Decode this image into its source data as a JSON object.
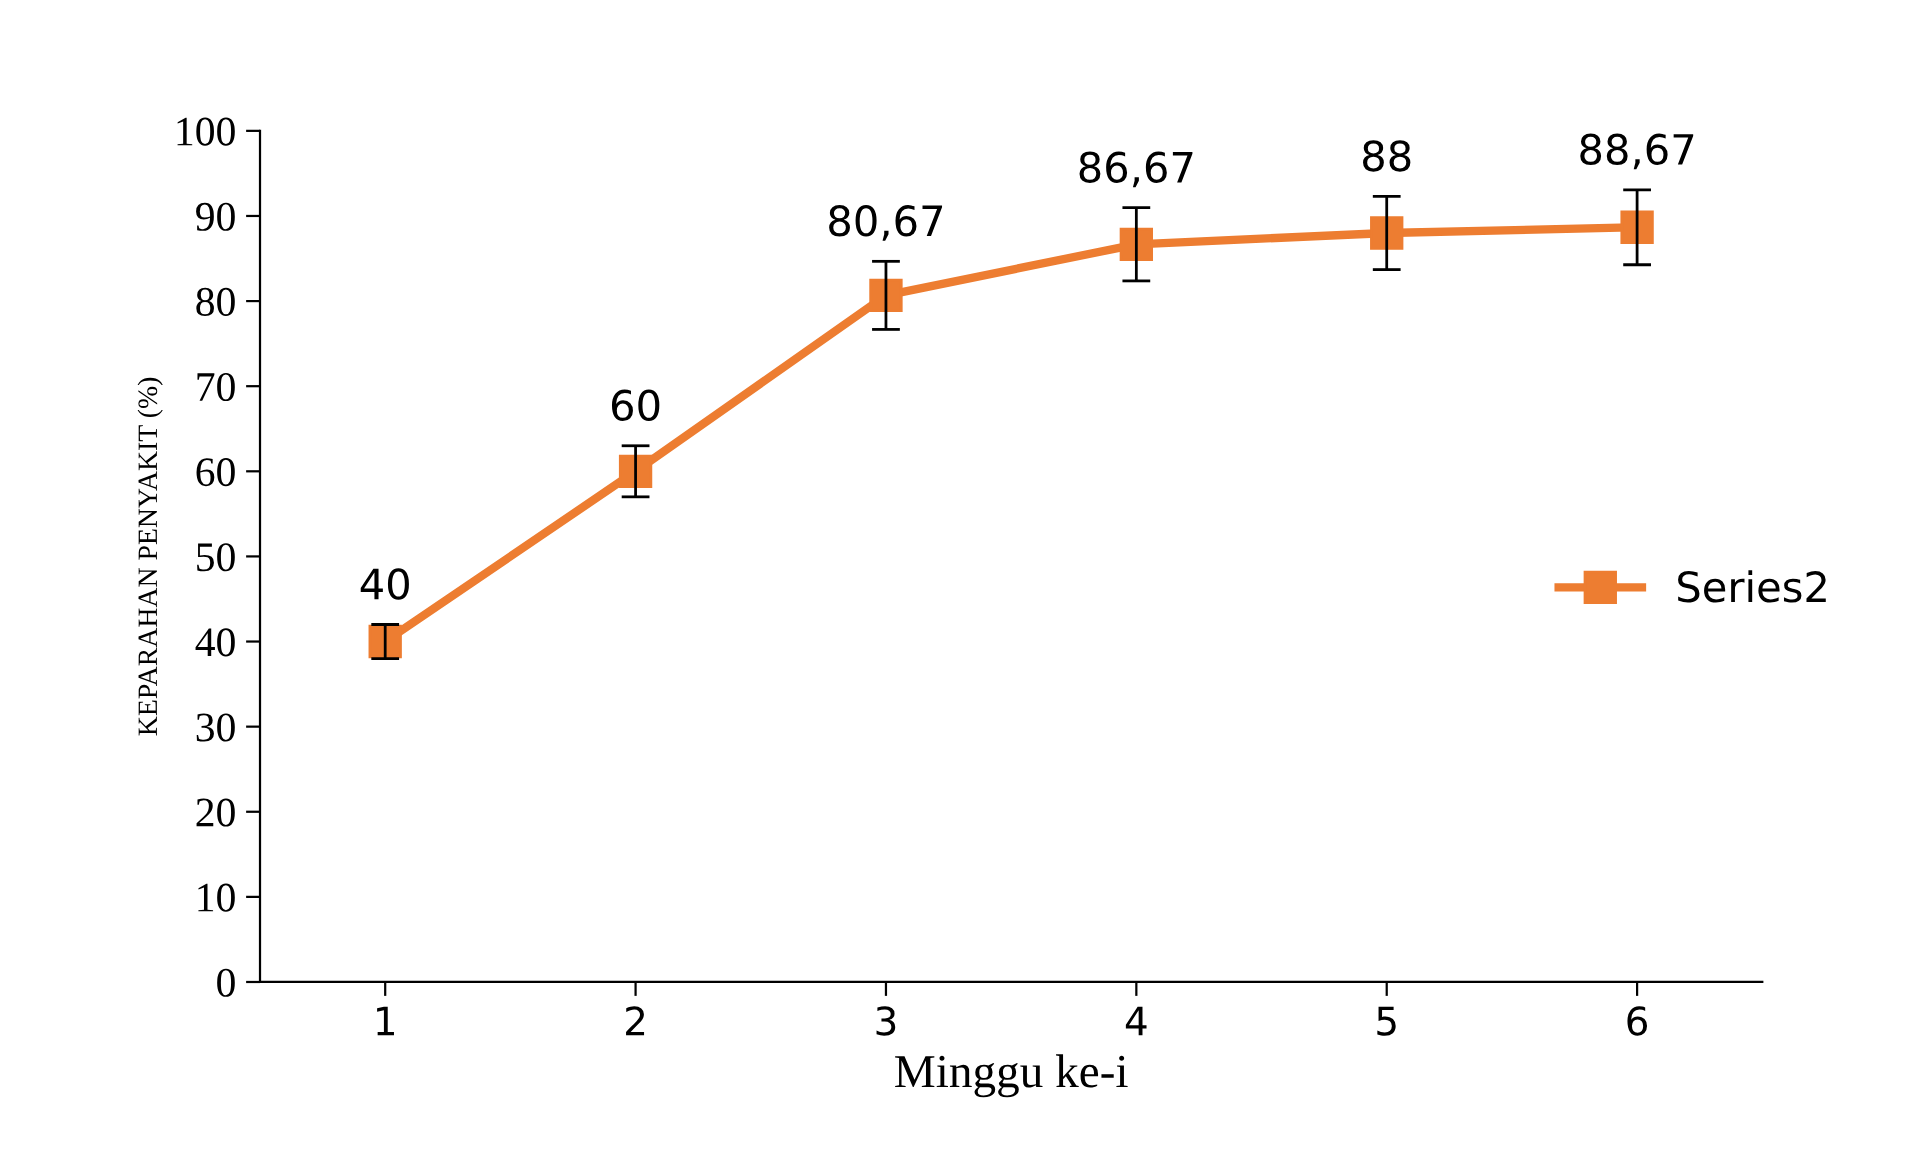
{
  "chart_data": {
    "type": "line",
    "xlabel": "Minggu ke-i",
    "ylabel": "KEPARAHAN PENYAKIT (%)",
    "categories": [
      "1",
      "2",
      "3",
      "4",
      "5",
      "6"
    ],
    "series": [
      {
        "name": "Series2",
        "color": "#ed7d31",
        "values": [
          40,
          60,
          80.67,
          86.67,
          88,
          88.67
        ],
        "errors": [
          2,
          3,
          4,
          4.3,
          4.3,
          4.4
        ],
        "value_labels": [
          "40",
          "60",
          "80,67",
          "86,67",
          "88",
          "88,67"
        ]
      }
    ],
    "ylim": [
      0,
      100
    ],
    "yticks": [
      0,
      10,
      20,
      30,
      40,
      50,
      60,
      70,
      80,
      90,
      100
    ],
    "grid": false,
    "legend": "right",
    "marker": "square",
    "line_style": "solid"
  }
}
